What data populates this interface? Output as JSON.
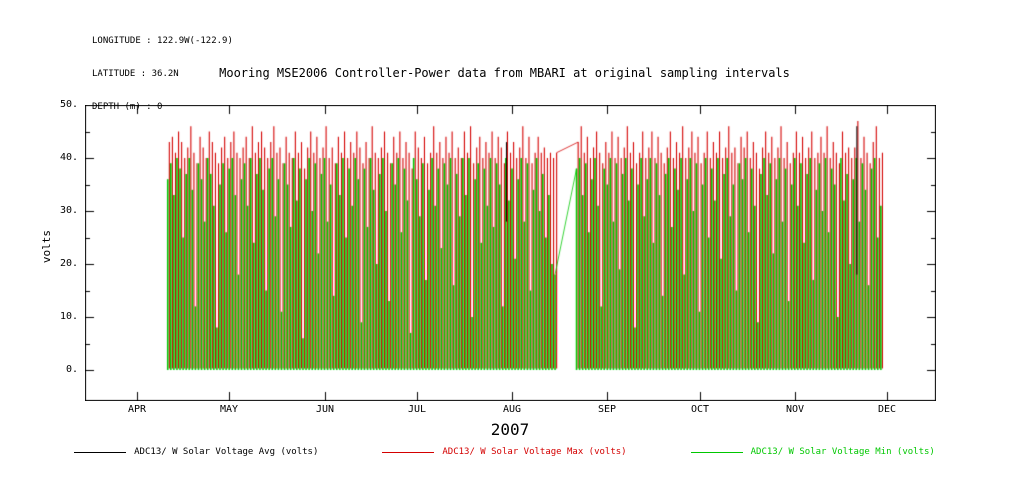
{
  "header": {
    "longitude": "LONGITUDE : 122.9W(-122.9)",
    "latitude": "LATITUDE : 36.2N",
    "depth": "DEPTH (m) : 0"
  },
  "title": "Mooring MSE2006 Controller-Power data from MBARI at original sampling intervals",
  "chart_data": {
    "type": "line",
    "title": "Mooring MSE2006 Controller-Power data from MBARI at original sampling intervals",
    "ylabel": "volts",
    "ylim": [
      0,
      50
    ],
    "yticks": {
      "values": [
        0,
        10,
        20,
        30,
        40,
        50
      ],
      "labels": [
        "0.",
        "10.",
        "20.",
        "30.",
        "40.",
        "50."
      ]
    },
    "x_axis": {
      "month_labels": [
        "APR",
        "MAY",
        "JUN",
        "JUL",
        "AUG",
        "SEP",
        "OCT",
        "NOV",
        "DEC"
      ],
      "year": "2007",
      "month_start_offsets_days": [
        0,
        30,
        61,
        91,
        122,
        153,
        183,
        214,
        244
      ]
    },
    "legend_position": "bottom",
    "grid": false,
    "series": [
      {
        "name": "ADC13/ W Solar Voltage Avg (volts)",
        "color": "#000000"
      },
      {
        "name": "ADC13/ W Solar Voltage Max (volts)",
        "color": "#d40000"
      },
      {
        "name": "ADC13/ W Solar Voltage Min (volts)",
        "color": "#00c800"
      }
    ],
    "daily": {
      "start_day": 10,
      "note_units": "volts; day index is days after Apr 1, 2007; null = data gap (mid-August)",
      "min_top": [
        36,
        39,
        33,
        40,
        38,
        25,
        37,
        40,
        34,
        12,
        39,
        36,
        28,
        40,
        37,
        31,
        8,
        35,
        39,
        26,
        38,
        40,
        33,
        18,
        36,
        39,
        31,
        40,
        24,
        37,
        40,
        34,
        15,
        38,
        40,
        29,
        36,
        11,
        39,
        35,
        27,
        40,
        32,
        38,
        6,
        36,
        40,
        30,
        39,
        22,
        37,
        40,
        28,
        35,
        14,
        39,
        33,
        40,
        25,
        38,
        31,
        40,
        36,
        9,
        38,
        27,
        40,
        34,
        20,
        37,
        40,
        30,
        13,
        39,
        35,
        40,
        26,
        38,
        32,
        7,
        40,
        36,
        29,
        39,
        17,
        34,
        40,
        31,
        38,
        23,
        39,
        35,
        40,
        16,
        37,
        29,
        40,
        33,
        40,
        10,
        36,
        39,
        24,
        38,
        31,
        40,
        27,
        39,
        35,
        12,
        40,
        32,
        38,
        21,
        36,
        40,
        28,
        39,
        15,
        34,
        40,
        30,
        37,
        25,
        33,
        20,
        18,
        null,
        null,
        null,
        null,
        null,
        null,
        38,
        40,
        33,
        39,
        26,
        36,
        40,
        31,
        12,
        38,
        35,
        40,
        28,
        39,
        19,
        37,
        40,
        32,
        38,
        8,
        35,
        40,
        29,
        36,
        40,
        24,
        39,
        33,
        14,
        37,
        40,
        27,
        38,
        34,
        40,
        18,
        36,
        40,
        30,
        39,
        11,
        35,
        40,
        25,
        38,
        32,
        40,
        21,
        37,
        40,
        29,
        35,
        15,
        39,
        36,
        40,
        26,
        38,
        31,
        9,
        37,
        40,
        33,
        39,
        22,
        36,
        40,
        28,
        38,
        13,
        35,
        40,
        31,
        39,
        24,
        37,
        40,
        17,
        34,
        39,
        30,
        40,
        26,
        38,
        35,
        10,
        40,
        32,
        37,
        20,
        36,
        40,
        28,
        39,
        34,
        16,
        38,
        40,
        25,
        31
      ],
      "max_top": [
        43,
        44,
        41,
        45,
        43,
        40,
        42,
        46,
        41,
        39,
        44,
        42,
        40,
        45,
        43,
        41,
        39,
        42,
        44,
        40,
        43,
        45,
        41,
        40,
        42,
        44,
        40,
        46,
        41,
        43,
        45,
        42,
        40,
        43,
        46,
        41,
        42,
        39,
        44,
        41,
        40,
        45,
        41,
        43,
        38,
        42,
        45,
        41,
        44,
        40,
        42,
        46,
        40,
        42,
        39,
        44,
        41,
        45,
        40,
        43,
        41,
        45,
        42,
        39,
        43,
        40,
        46,
        41,
        40,
        42,
        45,
        41,
        39,
        44,
        41,
        45,
        40,
        43,
        41,
        38,
        45,
        42,
        40,
        44,
        39,
        41,
        46,
        41,
        43,
        40,
        44,
        41,
        45,
        40,
        42,
        40,
        45,
        41,
        46,
        39,
        42,
        44,
        40,
        43,
        41,
        45,
        40,
        44,
        42,
        39,
        45,
        41,
        43,
        40,
        42,
        46,
        40,
        44,
        39,
        41,
        44,
        41,
        42,
        40,
        41,
        40,
        41,
        null,
        null,
        null,
        null,
        null,
        null,
        43,
        46,
        41,
        44,
        40,
        42,
        45,
        41,
        39,
        43,
        41,
        45,
        40,
        44,
        40,
        42,
        46,
        41,
        43,
        39,
        41,
        45,
        40,
        42,
        45,
        40,
        44,
        41,
        39,
        42,
        45,
        40,
        43,
        41,
        46,
        40,
        42,
        45,
        41,
        44,
        39,
        41,
        45,
        40,
        43,
        41,
        45,
        40,
        42,
        46,
        41,
        42,
        39,
        44,
        42,
        45,
        40,
        43,
        41,
        38,
        42,
        45,
        41,
        44,
        40,
        42,
        46,
        40,
        43,
        39,
        41,
        45,
        41,
        44,
        40,
        42,
        45,
        40,
        41,
        44,
        41,
        46,
        40,
        43,
        41,
        39,
        45,
        41,
        42,
        40,
        42,
        47,
        40,
        44,
        41,
        39,
        43,
        46,
        40,
        41
      ],
      "avg_spikes": [
        {
          "day": 234,
          "top": 46.0,
          "bottom": 18
        },
        {
          "day": 120,
          "top": 43.0,
          "bottom": 28
        }
      ]
    }
  },
  "legend": {
    "items": [
      "ADC13/ W Solar Voltage Avg (volts)",
      "ADC13/ W Solar Voltage Max (volts)",
      "ADC13/ W Solar Voltage Min (volts)"
    ]
  }
}
